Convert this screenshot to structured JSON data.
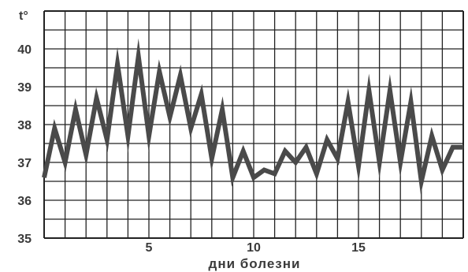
{
  "chart_data": {
    "type": "line",
    "title": "",
    "unit_label": "t°",
    "xlabel": "дни болезни",
    "x_ticks": [
      5,
      10,
      15
    ],
    "y_ticks": [
      35,
      36,
      37,
      38,
      39,
      40
    ],
    "xlim": [
      0,
      20
    ],
    "ylim": [
      35,
      41
    ],
    "grid": "on",
    "series": [
      {
        "name": "",
        "color": "#4a4a4a",
        "x": [
          0,
          0.5,
          1,
          1.5,
          2,
          2.5,
          3,
          3.5,
          4,
          4.5,
          5,
          5.5,
          6,
          6.5,
          7,
          7.5,
          8,
          8.5,
          9,
          9.5,
          10,
          10.5,
          11,
          11.5,
          12,
          12.5,
          13,
          13.5,
          14,
          14.5,
          15,
          15.5,
          16,
          16.5,
          17,
          17.5,
          18,
          18.5,
          19,
          19.5,
          20
        ],
        "values": [
          36.6,
          37.9,
          37.0,
          38.4,
          37.2,
          38.7,
          37.6,
          39.6,
          37.7,
          39.8,
          37.7,
          39.4,
          38.2,
          39.3,
          37.9,
          38.8,
          37.1,
          38.4,
          36.6,
          37.3,
          36.6,
          36.8,
          36.7,
          37.3,
          37.0,
          37.4,
          36.7,
          37.6,
          37.1,
          38.6,
          36.9,
          38.9,
          37.0,
          38.9,
          37.0,
          38.6,
          36.5,
          37.7,
          36.8,
          37.4,
          37.4
        ]
      }
    ]
  }
}
